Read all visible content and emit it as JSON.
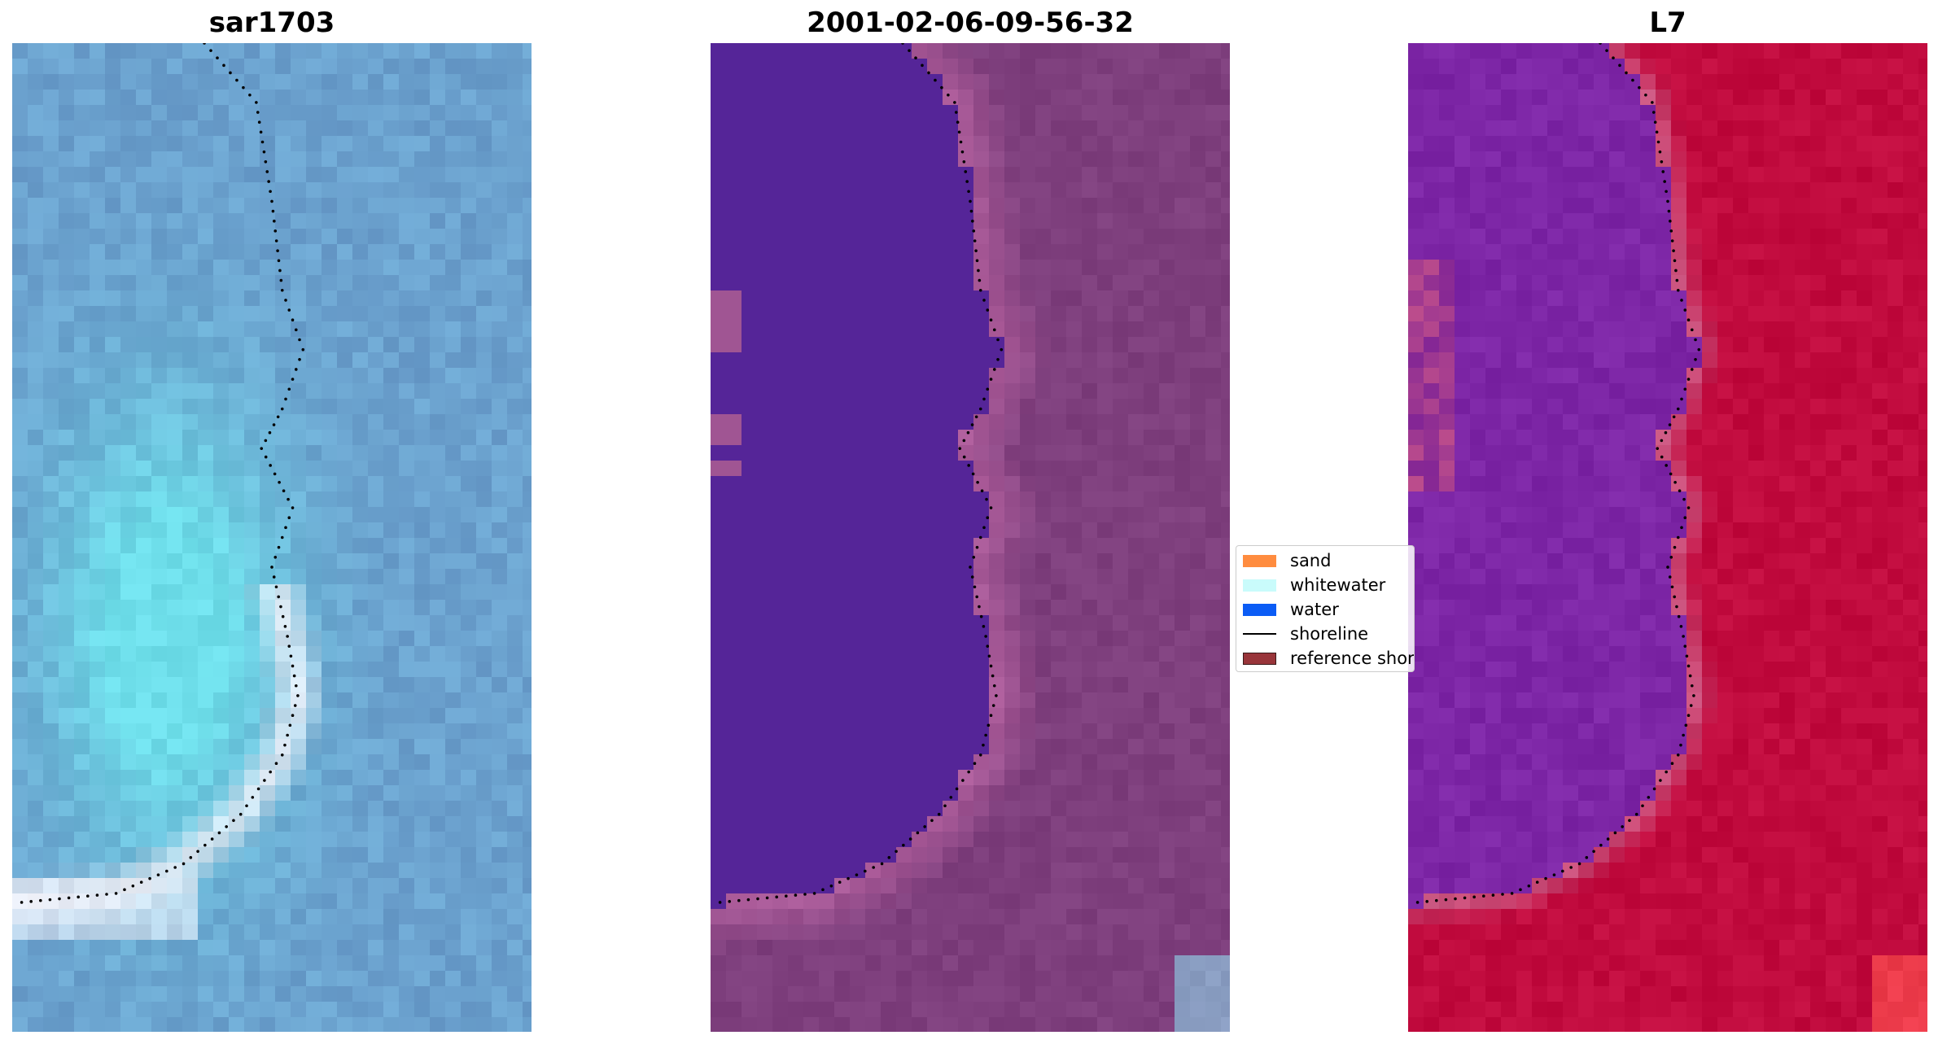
{
  "panels": [
    {
      "title": "sar1703",
      "style": "rgb"
    },
    {
      "title": "2001-02-06-09-56-32",
      "style": "classified"
    },
    {
      "title": "L7",
      "style": "index"
    }
  ],
  "legend": {
    "items": [
      {
        "label": "sand",
        "color": "#ff8c3f",
        "kind": "patch"
      },
      {
        "label": "whitewater",
        "color": "#c9fbfb",
        "kind": "patch"
      },
      {
        "label": "water",
        "color": "#0b5cf5",
        "kind": "patch"
      },
      {
        "label": "shoreline",
        "color": "#000000",
        "kind": "line"
      },
      {
        "label": "reference shoreline",
        "color": "#99353a",
        "kind": "patch-border"
      }
    ]
  },
  "colors": {
    "rgb_base": "#6b9dcc",
    "rgb_cyan": "#6fe6ee",
    "rgb_white": "#f7f5fb",
    "water_class": "#552598",
    "land_class": "#7e3f7d",
    "land_edge": "#c26aa8",
    "index_water": "#7d26a6",
    "index_land": "#c10b3e",
    "index_edge": "#d07aa0",
    "shoreline": "#000000"
  }
}
